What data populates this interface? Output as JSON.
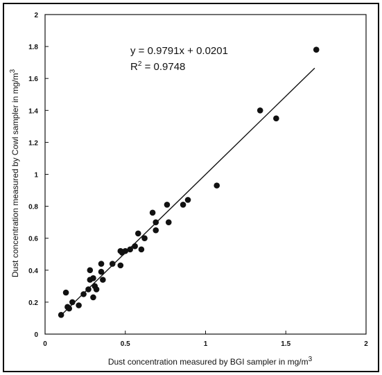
{
  "chart_data": {
    "type": "scatter",
    "title": "",
    "xlabel": "Dust concentration measured by BGI sampler in mg/m",
    "xlabel_sup": "3",
    "ylabel": "Dust concentration measured by Cowl sampler in mg/m",
    "ylabel_sup": "3",
    "xlim": [
      0,
      2
    ],
    "ylim": [
      0,
      2
    ],
    "xticks": [
      0,
      0.5,
      1,
      1.5,
      2
    ],
    "xtick_labels": [
      "0",
      "0.5",
      "1",
      "1.5",
      "2"
    ],
    "yticks": [
      0,
      0.2,
      0.4,
      0.6,
      0.8,
      1,
      1.2,
      1.4,
      1.6,
      1.8,
      2
    ],
    "ytick_labels": [
      "0",
      "0.2",
      "0.4",
      "0.6",
      "0.8",
      "1",
      "1.2",
      "1.4",
      "1.6",
      "1.8",
      "2"
    ],
    "grid": false,
    "legend": "none",
    "marker_color": "#111111",
    "line_color": "#111111",
    "annotation": {
      "equation": "y = 0.9791x + 0.0201",
      "r2_prefix": "R",
      "r2_sup": "2",
      "r2_value": " = 0.9748"
    },
    "trendline": {
      "slope": 0.9791,
      "intercept": 0.0201,
      "x_range": [
        0.1,
        1.68
      ]
    },
    "points": [
      {
        "x": 0.1,
        "y": 0.12
      },
      {
        "x": 0.13,
        "y": 0.26
      },
      {
        "x": 0.14,
        "y": 0.17
      },
      {
        "x": 0.15,
        "y": 0.16
      },
      {
        "x": 0.17,
        "y": 0.2
      },
      {
        "x": 0.21,
        "y": 0.18
      },
      {
        "x": 0.24,
        "y": 0.25
      },
      {
        "x": 0.27,
        "y": 0.28
      },
      {
        "x": 0.28,
        "y": 0.34
      },
      {
        "x": 0.28,
        "y": 0.4
      },
      {
        "x": 0.3,
        "y": 0.35
      },
      {
        "x": 0.3,
        "y": 0.23
      },
      {
        "x": 0.31,
        "y": 0.3
      },
      {
        "x": 0.32,
        "y": 0.28
      },
      {
        "x": 0.35,
        "y": 0.39
      },
      {
        "x": 0.35,
        "y": 0.44
      },
      {
        "x": 0.36,
        "y": 0.34
      },
      {
        "x": 0.42,
        "y": 0.44
      },
      {
        "x": 0.47,
        "y": 0.52
      },
      {
        "x": 0.47,
        "y": 0.43
      },
      {
        "x": 0.48,
        "y": 0.51
      },
      {
        "x": 0.5,
        "y": 0.52
      },
      {
        "x": 0.53,
        "y": 0.53
      },
      {
        "x": 0.56,
        "y": 0.55
      },
      {
        "x": 0.58,
        "y": 0.63
      },
      {
        "x": 0.6,
        "y": 0.53
      },
      {
        "x": 0.62,
        "y": 0.6
      },
      {
        "x": 0.67,
        "y": 0.76
      },
      {
        "x": 0.69,
        "y": 0.7
      },
      {
        "x": 0.69,
        "y": 0.65
      },
      {
        "x": 0.76,
        "y": 0.81
      },
      {
        "x": 0.77,
        "y": 0.7
      },
      {
        "x": 0.86,
        "y": 0.81
      },
      {
        "x": 0.89,
        "y": 0.84
      },
      {
        "x": 1.07,
        "y": 0.93
      },
      {
        "x": 1.34,
        "y": 1.4
      },
      {
        "x": 1.44,
        "y": 1.35
      },
      {
        "x": 1.69,
        "y": 1.78
      }
    ]
  }
}
